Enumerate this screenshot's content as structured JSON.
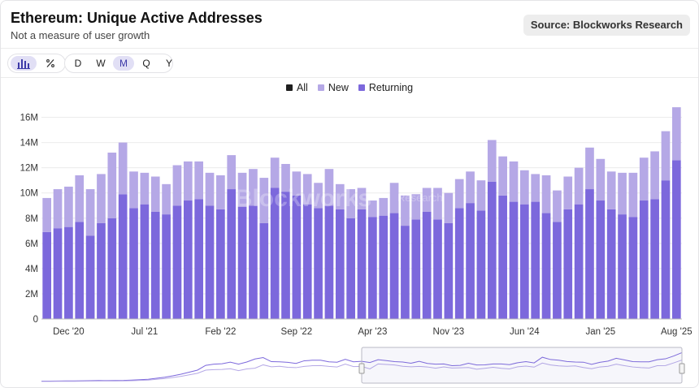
{
  "header": {
    "title": "Ethereum: Unique Active Addresses",
    "subtitle": "Not a measure of user growth",
    "source_button": "Source: Blockworks Research"
  },
  "chart_type_buttons": {
    "bar_icon": "bar-chart-icon",
    "percent_icon": "percent-icon",
    "active": "bar"
  },
  "timeframes": [
    {
      "label": "D",
      "active": false
    },
    {
      "label": "W",
      "active": false
    },
    {
      "label": "M",
      "active": true
    },
    {
      "label": "Q",
      "active": false
    },
    {
      "label": "Y",
      "active": false
    }
  ],
  "legend": [
    {
      "label": "All",
      "color": "#1f1f1f"
    },
    {
      "label": "New",
      "color": "#b5a8e6"
    },
    {
      "label": "Returning",
      "color": "#7c68dc"
    }
  ],
  "watermark": {
    "brand": "Blockworks",
    "suffix": "Research"
  },
  "chart_data": {
    "type": "bar",
    "stacked": true,
    "y_ticks": [
      "0",
      "2M",
      "4M",
      "6M",
      "8M",
      "10M",
      "12M",
      "14M",
      "16M"
    ],
    "ylim": [
      0,
      17000000
    ],
    "x_tick_labels": [
      {
        "index": 2,
        "label": "Dec '20"
      },
      {
        "index": 9,
        "label": "Jul '21"
      },
      {
        "index": 16,
        "label": "Feb '22"
      },
      {
        "index": 23,
        "label": "Sep '22"
      },
      {
        "index": 30,
        "label": "Apr '23"
      },
      {
        "index": 37,
        "label": "Nov '23"
      },
      {
        "index": 44,
        "label": "Jun '24"
      },
      {
        "index": 51,
        "label": "Jan '25"
      },
      {
        "index": 58,
        "label": "Aug '25"
      }
    ],
    "series": [
      {
        "name": "Returning",
        "color": "#7c68dc",
        "values": [
          6.9,
          7.2,
          7.3,
          7.7,
          6.6,
          7.6,
          8.0,
          9.9,
          8.8,
          9.1,
          8.5,
          8.3,
          9.0,
          9.4,
          9.5,
          9.0,
          8.7,
          10.3,
          8.9,
          9.0,
          7.6,
          10.4,
          10.1,
          9.8,
          9.1,
          8.8,
          9.0,
          8.7,
          8.0,
          8.7,
          8.1,
          8.2,
          8.4,
          7.4,
          7.9,
          8.5,
          7.9,
          7.6,
          8.8,
          9.2,
          8.6,
          10.9,
          9.8,
          9.3,
          9.1,
          9.3,
          8.4,
          7.7,
          8.7,
          9.1,
          10.3,
          9.4,
          8.7,
          8.3,
          8.1,
          9.4,
          9.5,
          11.0,
          12.6
        ]
      },
      {
        "name": "New",
        "color": "#b5a8e6",
        "values": [
          2.7,
          3.1,
          3.2,
          3.7,
          3.7,
          3.9,
          5.2,
          4.1,
          2.9,
          2.5,
          2.8,
          2.4,
          3.2,
          3.1,
          3.0,
          2.6,
          2.7,
          2.7,
          2.7,
          2.9,
          3.6,
          2.4,
          2.2,
          1.9,
          2.4,
          2.0,
          2.9,
          2.0,
          2.3,
          1.7,
          1.3,
          1.4,
          2.4,
          2.4,
          2.0,
          1.9,
          2.5,
          2.4,
          2.3,
          2.5,
          2.4,
          3.3,
          3.1,
          3.2,
          2.7,
          2.2,
          3.0,
          2.5,
          2.6,
          2.9,
          3.3,
          3.3,
          3.0,
          3.3,
          3.5,
          3.4,
          3.8,
          3.9,
          4.2
        ]
      }
    ],
    "units": "M"
  },
  "navigator": {
    "selection_start_fraction": 0.5,
    "selection_end_fraction": 1.0
  }
}
